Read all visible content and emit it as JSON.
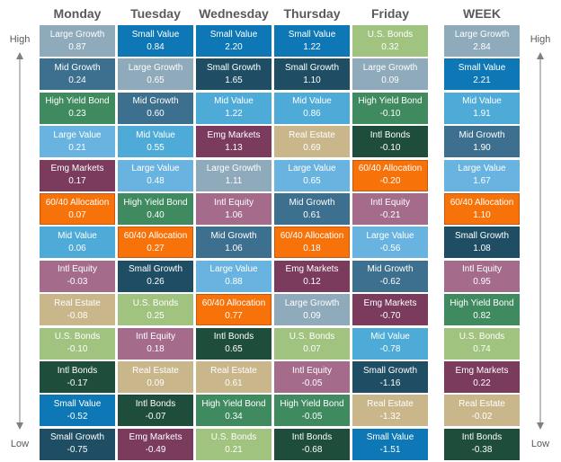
{
  "side_labels": {
    "top": "High",
    "bottom": "Low"
  },
  "colors": {
    "Large Growth": "#8eaabb",
    "Mid Growth": "#3d6f8e",
    "Small Growth": "#1f4e64",
    "Large Value": "#69b3e0",
    "Mid Value": "#4eaad6",
    "Small Value": "#0d78b5",
    "High Yield Bond": "#3f8a5f",
    "Emg Markets": "#7a3b5c",
    "60/40 Allocation": "#f7730a",
    "Intl Equity": "#a46b8a",
    "Real Estate": "#c9b68b",
    "U.S. Bonds": "#a0c37f",
    "Intl Bonds": "#1f4d3c"
  },
  "chart_data": {
    "type": "table",
    "columns": [
      {
        "name": "Monday",
        "cells": [
          {
            "label": "Large Growth",
            "value": "0.87"
          },
          {
            "label": "Mid Growth",
            "value": "0.24"
          },
          {
            "label": "High Yield Bond",
            "value": "0.23"
          },
          {
            "label": "Large Value",
            "value": "0.21"
          },
          {
            "label": "Emg Markets",
            "value": "0.17"
          },
          {
            "label": "60/40 Allocation",
            "value": "0.07"
          },
          {
            "label": "Mid Value",
            "value": "0.06"
          },
          {
            "label": "Intl Equity",
            "value": "-0.03"
          },
          {
            "label": "Real Estate",
            "value": "-0.08"
          },
          {
            "label": "U.S. Bonds",
            "value": "-0.10"
          },
          {
            "label": "Intl Bonds",
            "value": "-0.17"
          },
          {
            "label": "Small Value",
            "value": "-0.52"
          },
          {
            "label": "Small Growth",
            "value": "-0.75"
          }
        ]
      },
      {
        "name": "Tuesday",
        "cells": [
          {
            "label": "Small Value",
            "value": "0.84"
          },
          {
            "label": "Large Growth",
            "value": "0.65"
          },
          {
            "label": "Mid Growth",
            "value": "0.60"
          },
          {
            "label": "Mid Value",
            "value": "0.55"
          },
          {
            "label": "Large Value",
            "value": "0.48"
          },
          {
            "label": "High Yield Bond",
            "value": "0.40"
          },
          {
            "label": "60/40 Allocation",
            "value": "0.27"
          },
          {
            "label": "Small Growth",
            "value": "0.26"
          },
          {
            "label": "U.S. Bonds",
            "value": "0.25"
          },
          {
            "label": "Intl Equity",
            "value": "0.18"
          },
          {
            "label": "Real Estate",
            "value": "0.09"
          },
          {
            "label": "Intl Bonds",
            "value": "-0.07"
          },
          {
            "label": "Emg Markets",
            "value": "-0.49"
          }
        ]
      },
      {
        "name": "Wednesday",
        "cells": [
          {
            "label": "Small Value",
            "value": "2.20"
          },
          {
            "label": "Small Growth",
            "value": "1.65"
          },
          {
            "label": "Mid Value",
            "value": "1.22"
          },
          {
            "label": "Emg Markets",
            "value": "1.13"
          },
          {
            "label": "Large Growth",
            "value": "1.11"
          },
          {
            "label": "Intl Equity",
            "value": "1.06"
          },
          {
            "label": "Mid Growth",
            "value": "1.06"
          },
          {
            "label": "Large Value",
            "value": "0.88"
          },
          {
            "label": "60/40 Allocation",
            "value": "0.77"
          },
          {
            "label": "Intl Bonds",
            "value": "0.65"
          },
          {
            "label": "Real Estate",
            "value": "0.61"
          },
          {
            "label": "High Yield Bond",
            "value": "0.34"
          },
          {
            "label": "U.S. Bonds",
            "value": "0.21"
          }
        ]
      },
      {
        "name": "Thursday",
        "cells": [
          {
            "label": "Small Value",
            "value": "1.22"
          },
          {
            "label": "Small Growth",
            "value": "1.10"
          },
          {
            "label": "Mid Value",
            "value": "0.86"
          },
          {
            "label": "Real Estate",
            "value": "0.69"
          },
          {
            "label": "Large Value",
            "value": "0.65"
          },
          {
            "label": "Mid Growth",
            "value": "0.61"
          },
          {
            "label": "60/40 Allocation",
            "value": "0.18"
          },
          {
            "label": "Emg Markets",
            "value": "0.12"
          },
          {
            "label": "Large Growth",
            "value": "0.09"
          },
          {
            "label": "U.S. Bonds",
            "value": "0.07"
          },
          {
            "label": "Intl Equity",
            "value": "-0.05"
          },
          {
            "label": "High Yield Bond",
            "value": "-0.05"
          },
          {
            "label": "Intl Bonds",
            "value": "-0.68"
          }
        ]
      },
      {
        "name": "Friday",
        "cells": [
          {
            "label": "U.S. Bonds",
            "value": "0.32"
          },
          {
            "label": "Large Growth",
            "value": "0.09"
          },
          {
            "label": "High Yield Bond",
            "value": "-0.10"
          },
          {
            "label": "Intl Bonds",
            "value": "-0.10"
          },
          {
            "label": "60/40 Allocation",
            "value": "-0.20"
          },
          {
            "label": "Intl Equity",
            "value": "-0.21"
          },
          {
            "label": "Large Value",
            "value": "-0.56"
          },
          {
            "label": "Mid Growth",
            "value": "-0.62"
          },
          {
            "label": "Emg Markets",
            "value": "-0.70"
          },
          {
            "label": "Mid Value",
            "value": "-0.78"
          },
          {
            "label": "Small Growth",
            "value": "-1.16"
          },
          {
            "label": "Real Estate",
            "value": "-1.32"
          },
          {
            "label": "Small Value",
            "value": "-1.51"
          }
        ]
      },
      {
        "name": "WEEK",
        "cells": [
          {
            "label": "Large Growth",
            "value": "2.84"
          },
          {
            "label": "Small Value",
            "value": "2.21"
          },
          {
            "label": "Mid Value",
            "value": "1.91"
          },
          {
            "label": "Mid Growth",
            "value": "1.90"
          },
          {
            "label": "Large Value",
            "value": "1.67"
          },
          {
            "label": "60/40 Allocation",
            "value": "1.10"
          },
          {
            "label": "Small Growth",
            "value": "1.08"
          },
          {
            "label": "Intl Equity",
            "value": "0.95"
          },
          {
            "label": "High Yield Bond",
            "value": "0.82"
          },
          {
            "label": "U.S. Bonds",
            "value": "0.74"
          },
          {
            "label": "Emg Markets",
            "value": "0.22"
          },
          {
            "label": "Real Estate",
            "value": "-0.02"
          },
          {
            "label": "Intl Bonds",
            "value": "-0.38"
          }
        ]
      }
    ]
  }
}
